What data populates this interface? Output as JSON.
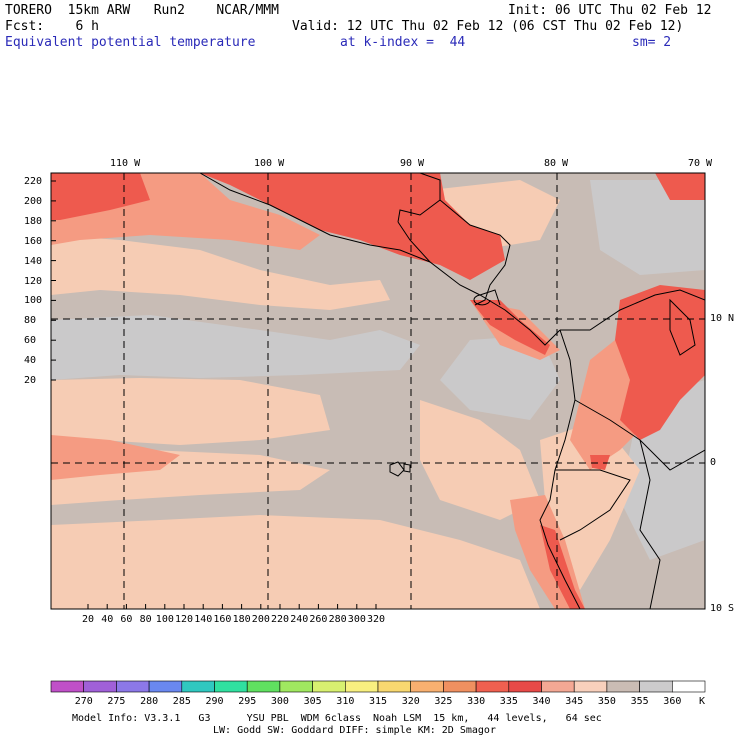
{
  "header": {
    "line1_left": "TORERO  15km ARW   Run2    NCAR/MMM",
    "line1_right": "Init: 06 UTC Thu 02 Feb 12",
    "line2_left": "Fcst:    6 h",
    "line2_right": "Valid: 12 UTC Thu 02 Feb 12 (06 CST Thu 02 Feb 12)",
    "field_name": "Equivalent potential temperature",
    "level": "at k-index =  44",
    "smoothing": "sm= 2"
  },
  "map": {
    "top_lon_labels": [
      "110 W",
      "100 W",
      "90 W",
      "80 W",
      "70 W"
    ],
    "right_lat_labels": [
      "10 N",
      "0",
      "10 S"
    ],
    "y_grid_labels": [
      "220",
      "200",
      "180",
      "160",
      "140",
      "120",
      "100",
      "80",
      "60",
      "40",
      "20"
    ],
    "x_grid_labels": [
      "20",
      "40",
      "60",
      "80",
      "100",
      "120",
      "140",
      "160",
      "180",
      "200",
      "220",
      "240",
      "260",
      "280",
      "300",
      "320"
    ],
    "colors": {
      "land_hot": "#ee5a4e",
      "warm": "#f59b82",
      "mild": "#f6ccb4",
      "neutral": "#c8bcb5",
      "cool": "#cac9ca",
      "coast": "#000000"
    }
  },
  "colorbar": {
    "values": [
      "270",
      "275",
      "280",
      "285",
      "290",
      "295",
      "300",
      "305",
      "310",
      "315",
      "320",
      "325",
      "330",
      "335",
      "340",
      "345",
      "350",
      "355",
      "360"
    ],
    "unit": "K",
    "colors": [
      "#c050c8",
      "#a060d8",
      "#8c78e8",
      "#6a88f0",
      "#30c8c0",
      "#30e0a0",
      "#60e060",
      "#a0e860",
      "#d8f070",
      "#f8f080",
      "#f8d870",
      "#f8b070",
      "#f09060",
      "#f06050",
      "#e84a48",
      "#f4a894",
      "#f8d0bc",
      "#cabcb4",
      "#cccbcc",
      "#ffffff"
    ]
  },
  "footer": {
    "line1": "Model Info: V3.3.1   G3      YSU PBL  WDM 6class  Noah LSM  15 km,   44 levels,   64 sec",
    "line2": "LW: Godd SW: Goddard DIFF: simple KM: 2D Smagor"
  }
}
